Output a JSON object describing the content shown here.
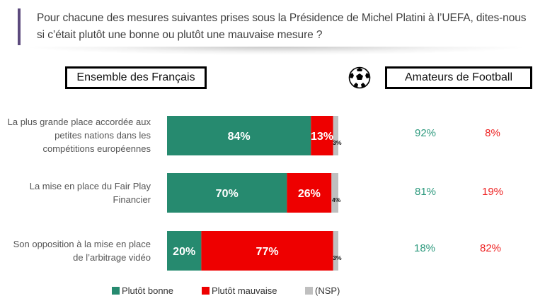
{
  "question": "Pour chacune des mesures suivantes prises sous la Présidence de Michel Platini à l’UEFA, dites-nous si c’était plutôt une bonne ou plutôt une mauvaise mesure ?",
  "panels": {
    "left_title": "Ensemble des Français",
    "right_title": "Amateurs de Football",
    "right_icon": "soccer-ball-icon"
  },
  "colors": {
    "bonne": "#268a6f",
    "mauvaise": "#ee0000",
    "nsp": "#bfbfbf",
    "amateur_bonne": "#2e9a7e",
    "amateur_mauvaise": "#ee2222"
  },
  "chart_data": {
    "type": "bar",
    "orientation": "horizontal",
    "stacked": true,
    "title": "Ensemble des Français",
    "categories": [
      "La plus grande place accordée aux petites nations dans les compétitions européennes",
      "La mise en place du Fair Play Financier",
      "Son opposition à la mise en place de l’arbitrage vidéo"
    ],
    "series": [
      {
        "name": "Plutôt bonne",
        "values": [
          84,
          70,
          20
        ],
        "labels": [
          "84%",
          "70%",
          "20%"
        ]
      },
      {
        "name": "Plutôt mauvaise",
        "values": [
          13,
          26,
          77
        ],
        "labels": [
          "13%",
          "26%",
          "77%"
        ]
      },
      {
        "name": "(NSP)",
        "values": [
          3,
          4,
          3
        ],
        "labels": [
          "3%",
          "4%",
          "3%"
        ]
      }
    ],
    "xlim": [
      0,
      100
    ],
    "legend_position": "bottom",
    "grid": false
  },
  "amateurs": [
    {
      "bonne": "92%",
      "mauvaise": "8%"
    },
    {
      "bonne": "81%",
      "mauvaise": "19%"
    },
    {
      "bonne": "18%",
      "mauvaise": "82%"
    }
  ],
  "legend": [
    {
      "label": "Plutôt bonne",
      "color": "#268a6f"
    },
    {
      "label": "Plutôt mauvaise",
      "color": "#ee0000"
    },
    {
      "label": "(NSP)",
      "color": "#bfbfbf"
    }
  ]
}
